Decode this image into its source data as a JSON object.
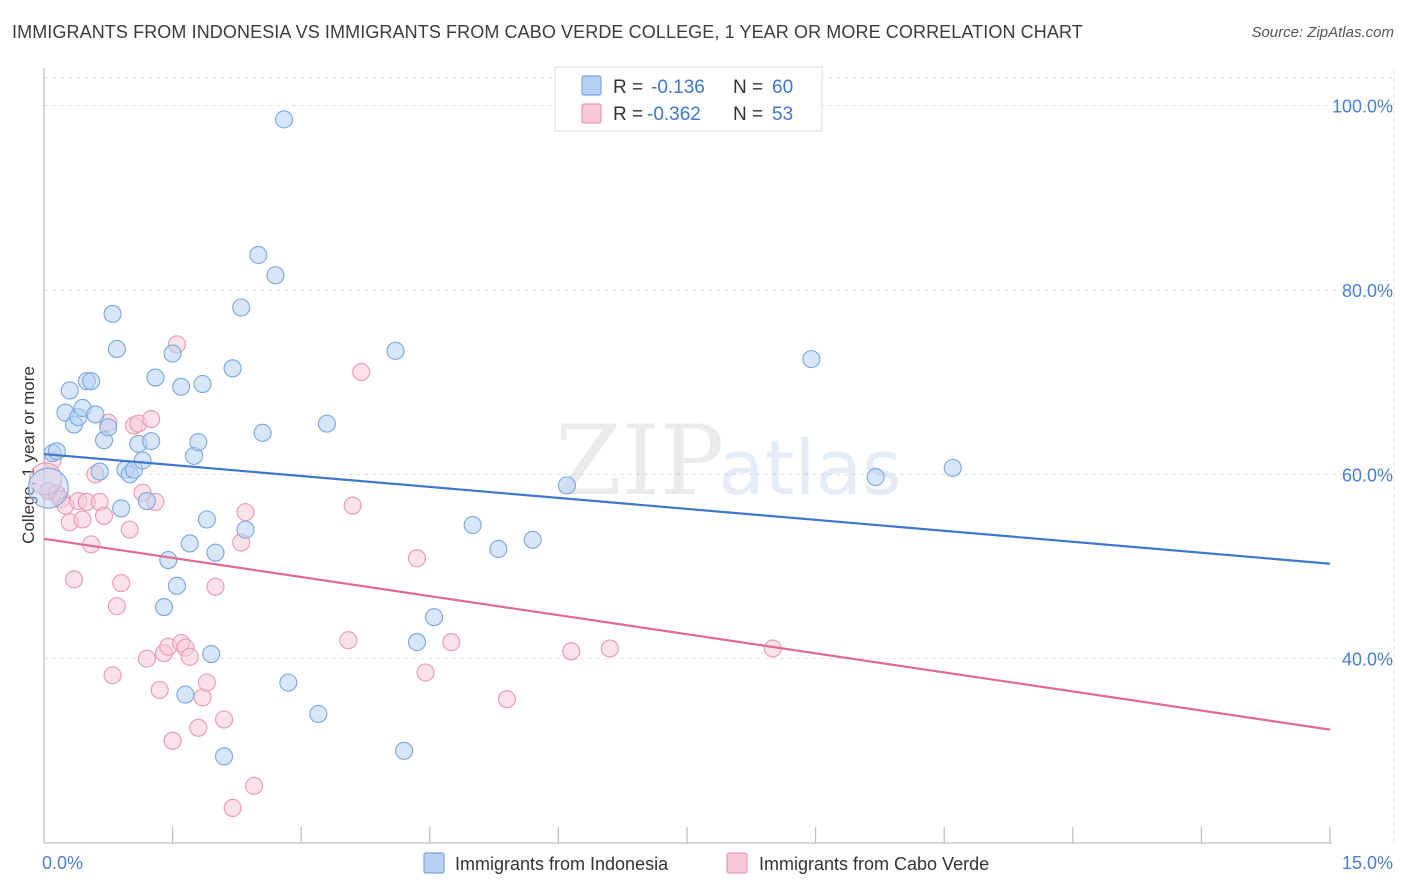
{
  "title": "IMMIGRANTS FROM INDONESIA VS IMMIGRANTS FROM CABO VERDE COLLEGE, 1 YEAR OR MORE CORRELATION CHART",
  "source": "Source: ZipAtlas.com",
  "watermark": {
    "zip": "ZIP",
    "atlas": "atlas"
  },
  "colors": {
    "blue_fill": "#b6d1f3",
    "blue_stroke": "#7aa7de",
    "blue_line": "#3f77cc",
    "pink_fill": "#f7c8d6",
    "pink_stroke": "#e899b3",
    "pink_line": "#e06a93",
    "axis_text": "#4a7fd0",
    "grid": "#e2e2e2"
  },
  "legend": {
    "r_label": "R =",
    "n_label": "N =",
    "rows": [
      {
        "series": "Immigrants from Indonesia",
        "r": "-0.136",
        "n": "60"
      },
      {
        "series": "Immigrants from Cabo Verde",
        "r": "-0.362",
        "n": "53"
      }
    ]
  },
  "chart_data": {
    "type": "scatter",
    "title": "IMMIGRANTS FROM INDONESIA VS IMMIGRANTS FROM CABO VERDE COLLEGE, 1 YEAR OR MORE CORRELATION CHART",
    "xlabel": "",
    "ylabel": "College, 1 year or more",
    "xlim": [
      0,
      15
    ],
    "ylim": [
      20,
      103
    ],
    "x_tick_labels": [
      {
        "value": 0,
        "label": "0.0%"
      },
      {
        "value": 15,
        "label": "15.0%"
      }
    ],
    "x_minor_ticks": [
      1.5,
      3,
      4.5,
      6,
      7.5,
      9,
      10.5,
      12,
      13.5,
      15
    ],
    "y_ticks": [
      {
        "value": 100,
        "label": "100.0%"
      },
      {
        "value": 80,
        "label": "80.0%"
      },
      {
        "value": 60,
        "label": "60.0%"
      },
      {
        "value": 40,
        "label": "40.0%"
      }
    ],
    "series": [
      {
        "name": "Immigrants from Indonesia",
        "trend": {
          "x": [
            0,
            15
          ],
          "y": [
            62.2,
            50.3
          ]
        },
        "points": [
          [
            0.1,
            62.3
          ],
          [
            0.15,
            62.5
          ],
          [
            0.25,
            66.7
          ],
          [
            0.3,
            69.1
          ],
          [
            0.35,
            65.4
          ],
          [
            0.4,
            66.2
          ],
          [
            0.45,
            67.2
          ],
          [
            0.5,
            70.1
          ],
          [
            0.55,
            70.1
          ],
          [
            0.6,
            66.5
          ],
          [
            0.65,
            60.3
          ],
          [
            0.7,
            63.7
          ],
          [
            0.75,
            65.1
          ],
          [
            0.8,
            77.4
          ],
          [
            0.85,
            73.6
          ],
          [
            0.9,
            56.3
          ],
          [
            0.95,
            60.5
          ],
          [
            1.0,
            60.0
          ],
          [
            1.05,
            60.5
          ],
          [
            1.1,
            63.3
          ],
          [
            1.15,
            61.5
          ],
          [
            1.2,
            57.1
          ],
          [
            1.25,
            63.6
          ],
          [
            1.3,
            70.5
          ],
          [
            1.4,
            45.6
          ],
          [
            1.45,
            50.7
          ],
          [
            1.5,
            73.1
          ],
          [
            1.55,
            47.9
          ],
          [
            1.6,
            69.5
          ],
          [
            1.65,
            36.1
          ],
          [
            1.7,
            52.5
          ],
          [
            1.75,
            62.0
          ],
          [
            1.8,
            63.5
          ],
          [
            1.85,
            69.8
          ],
          [
            1.9,
            55.1
          ],
          [
            1.95,
            40.5
          ],
          [
            2.0,
            51.5
          ],
          [
            2.1,
            29.4
          ],
          [
            2.2,
            71.5
          ],
          [
            2.3,
            78.1
          ],
          [
            2.35,
            54.0
          ],
          [
            2.5,
            83.8
          ],
          [
            2.55,
            64.5
          ],
          [
            2.7,
            81.6
          ],
          [
            2.8,
            98.5
          ],
          [
            2.85,
            37.4
          ],
          [
            3.2,
            34.0
          ],
          [
            3.3,
            65.5
          ],
          [
            4.1,
            73.4
          ],
          [
            4.2,
            30.0
          ],
          [
            4.35,
            41.8
          ],
          [
            4.55,
            44.5
          ],
          [
            5.0,
            54.5
          ],
          [
            5.3,
            51.9
          ],
          [
            5.7,
            52.9
          ],
          [
            6.1,
            58.8
          ],
          [
            8.95,
            72.5
          ],
          [
            9.7,
            59.7
          ],
          [
            10.6,
            60.7
          ],
          [
            0.05,
            58.5
          ]
        ]
      },
      {
        "name": "Immigrants from Cabo Verde",
        "trend": {
          "x": [
            0,
            15
          ],
          "y": [
            53.0,
            32.3
          ]
        },
        "points": [
          [
            0.05,
            58.2
          ],
          [
            0.1,
            61.5
          ],
          [
            0.15,
            57.9
          ],
          [
            0.2,
            57.3
          ],
          [
            0.25,
            56.6
          ],
          [
            0.3,
            54.8
          ],
          [
            0.35,
            48.6
          ],
          [
            0.4,
            57.1
          ],
          [
            0.45,
            55.1
          ],
          [
            0.5,
            57.0
          ],
          [
            0.55,
            52.4
          ],
          [
            0.6,
            60.0
          ],
          [
            0.65,
            57.0
          ],
          [
            0.7,
            55.5
          ],
          [
            0.75,
            65.6
          ],
          [
            0.8,
            38.2
          ],
          [
            0.85,
            45.7
          ],
          [
            0.9,
            48.2
          ],
          [
            1.0,
            54.0
          ],
          [
            1.05,
            65.3
          ],
          [
            1.1,
            65.5
          ],
          [
            1.15,
            58.0
          ],
          [
            1.2,
            40.0
          ],
          [
            1.25,
            66.0
          ],
          [
            1.3,
            57.0
          ],
          [
            1.35,
            36.6
          ],
          [
            1.4,
            40.6
          ],
          [
            1.45,
            41.3
          ],
          [
            1.5,
            31.1
          ],
          [
            1.55,
            74.1
          ],
          [
            1.6,
            41.7
          ],
          [
            1.65,
            41.2
          ],
          [
            1.7,
            40.2
          ],
          [
            1.8,
            32.5
          ],
          [
            1.85,
            35.8
          ],
          [
            1.9,
            37.4
          ],
          [
            2.0,
            47.8
          ],
          [
            2.1,
            33.4
          ],
          [
            2.2,
            23.8
          ],
          [
            2.3,
            52.6
          ],
          [
            2.35,
            55.9
          ],
          [
            2.45,
            26.2
          ],
          [
            3.55,
            42.0
          ],
          [
            3.6,
            56.6
          ],
          [
            3.7,
            71.1
          ],
          [
            4.35,
            50.9
          ],
          [
            4.45,
            38.5
          ],
          [
            4.75,
            41.8
          ],
          [
            5.4,
            35.6
          ],
          [
            6.15,
            40.8
          ],
          [
            6.6,
            41.1
          ],
          [
            8.5,
            41.1
          ],
          [
            0.02,
            59.5
          ]
        ]
      }
    ]
  }
}
